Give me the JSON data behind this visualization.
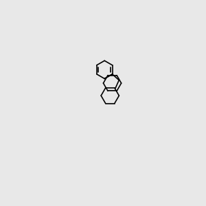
{
  "background_color": "#e8e8e8",
  "bond_color": "#000000",
  "nitrogen_color": "#0000cc",
  "hcl_color": "#009900",
  "fig_width": 3.0,
  "fig_height": 3.0,
  "dpi": 100,
  "bond_lw": 1.2,
  "double_sep": 2.8,
  "R": 17
}
